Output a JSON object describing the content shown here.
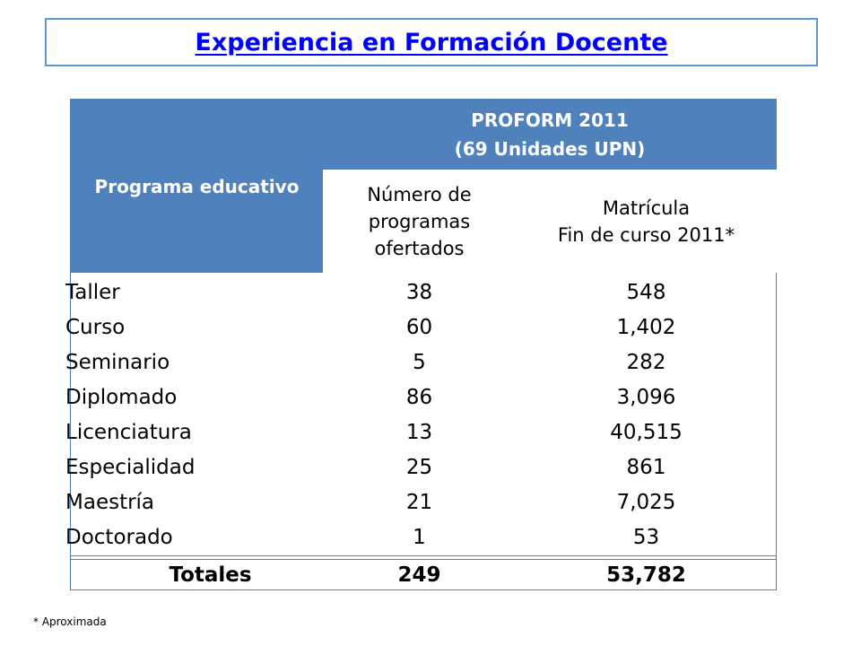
{
  "title": "Experiencia en Formación Docente",
  "table": {
    "header_program": "Programa educativo",
    "header_group_line1": "PROFORM 2011",
    "header_group_line2": "(69 Unidades UPN)",
    "header_num_line1": "Número de",
    "header_num_line2": "programas",
    "header_num_line3": "ofertados",
    "header_mat_line1": "Matrícula",
    "header_mat_line2": "Fin de curso 2011*",
    "rows": [
      {
        "program": "Taller",
        "num": "38",
        "mat": "548"
      },
      {
        "program": "Curso",
        "num": "60",
        "mat": "1,402"
      },
      {
        "program": "Seminario",
        "num": "5",
        "mat": "282"
      },
      {
        "program": "Diplomado",
        "num": "86",
        "mat": "3,096"
      },
      {
        "program": "Licenciatura",
        "num": "13",
        "mat": "40,515"
      },
      {
        "program": "Especialidad",
        "num": "25",
        "mat": "861"
      },
      {
        "program": "Maestría",
        "num": "21",
        "mat": "7,025"
      },
      {
        "program": "Doctorado",
        "num": "1",
        "mat": "53"
      }
    ],
    "total_label": "Totales",
    "total_num": "249",
    "total_mat": "53,782"
  },
  "footnote": "* Aproximada",
  "colors": {
    "header_blue": "#4f81bd",
    "title_blue": "#0000ff",
    "border_blue": "#5b9bd5"
  }
}
